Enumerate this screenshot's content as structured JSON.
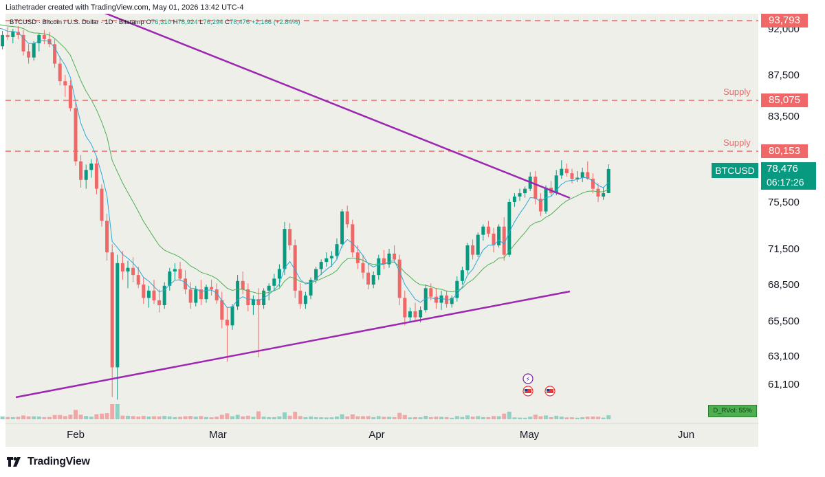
{
  "credit": "Liathetrader created with TradingView.com, May 01, 2026 13:42 UTC-4",
  "legend": {
    "symbol": "BTCUSD · Bitcoin / U.S. Dollar · 1D · Bitstamp",
    "o_label": "O",
    "o": "76,310",
    "h_label": "H",
    "h": "78,924",
    "l_label": "L",
    "l": "76,294",
    "c_label": "C",
    "c": "78,476",
    "change": "+2,166 (+2.84%)"
  },
  "tags": {
    "top": "93,793",
    "supply_high": "85,075",
    "supply_low": "80,153",
    "symbol": "BTCUSD",
    "last_price": "78,476",
    "countdown": "06:17:26"
  },
  "supply_label_1": "Supply",
  "supply_label_2": "Supply",
  "rvol": "D_RVol: 55%",
  "footer": {
    "brand": "TradingView"
  },
  "colors": {
    "up": "#089981",
    "down": "#f06767",
    "trendline": "#9c27b0",
    "fast_ma": "#2aa8d8",
    "slow_ma": "#4caf50",
    "level": "#f06767"
  },
  "chart_data": {
    "type": "candlestick",
    "x_ticks": [
      "Feb",
      "Mar",
      "Apr",
      "May",
      "Jun"
    ],
    "y_ticks": [
      92000,
      87500,
      83500,
      75500,
      71500,
      68500,
      65500,
      63100,
      61100
    ],
    "y_tick_labels": [
      "92,000",
      "87,500",
      "83,500",
      "75,500",
      "71,500",
      "68,500",
      "65,500",
      "63,100",
      "61,100"
    ],
    "levels": [
      93793,
      85075,
      80153
    ],
    "last_close": 78476,
    "candles_start": "2026-01-15",
    "candles": [
      [
        94500,
        95400,
        93200,
        93600
      ],
      [
        93600,
        94200,
        91000,
        91500
      ],
      [
        91500,
        92200,
        89800,
        90300
      ],
      [
        90300,
        91800,
        90000,
        91400
      ],
      [
        91400,
        92400,
        90900,
        91200
      ],
      [
        91200,
        92000,
        90600,
        91700
      ],
      [
        91700,
        92600,
        91000,
        91400
      ],
      [
        91400,
        91900,
        89400,
        89800
      ],
      [
        89800,
        90500,
        88600,
        89200
      ],
      [
        89200,
        90800,
        88900,
        90600
      ],
      [
        90600,
        91600,
        89800,
        91400
      ],
      [
        91400,
        91900,
        90500,
        91000
      ],
      [
        91000,
        91700,
        90200,
        90500
      ],
      [
        90500,
        91000,
        88200,
        88600
      ],
      [
        88600,
        89300,
        86500,
        86900
      ],
      [
        86900,
        87500,
        85400,
        86500
      ],
      [
        86500,
        87000,
        84000,
        84300
      ],
      [
        84300,
        84900,
        78800,
        79200
      ],
      [
        79200,
        79800,
        76800,
        77500
      ],
      [
        77500,
        78900,
        76700,
        78400
      ],
      [
        78400,
        79400,
        77700,
        79000
      ],
      [
        79000,
        79500,
        76200,
        76700
      ],
      [
        76700,
        77100,
        73400,
        73900
      ],
      [
        73900,
        74500,
        70500,
        71200
      ],
      [
        71200,
        71900,
        60200,
        62300
      ],
      [
        62300,
        71000,
        60000,
        70300
      ],
      [
        70300,
        71300,
        68900,
        69600
      ],
      [
        69600,
        70500,
        68200,
        69900
      ],
      [
        69900,
        70800,
        68700,
        69300
      ],
      [
        69300,
        70000,
        68200,
        68500
      ],
      [
        68500,
        69100,
        66900,
        67400
      ],
      [
        67400,
        68400,
        66600,
        68000
      ],
      [
        68000,
        68900,
        66900,
        67200
      ],
      [
        67200,
        68100,
        66200,
        66800
      ],
      [
        66800,
        68700,
        66500,
        68400
      ],
      [
        68400,
        69900,
        68000,
        69600
      ],
      [
        69600,
        70300,
        68900,
        69800
      ],
      [
        69800,
        70400,
        68800,
        69000
      ],
      [
        69000,
        69700,
        67700,
        68100
      ],
      [
        68100,
        68700,
        66500,
        67000
      ],
      [
        67000,
        68400,
        66700,
        68100
      ],
      [
        68100,
        68900,
        66800,
        67300
      ],
      [
        67300,
        68500,
        67000,
        68300
      ],
      [
        68300,
        68900,
        67600,
        68100
      ],
      [
        68100,
        68600,
        66900,
        67200
      ],
      [
        67200,
        67900,
        65000,
        65600
      ],
      [
        65600,
        66600,
        62700,
        65200
      ],
      [
        65200,
        66900,
        64900,
        66700
      ],
      [
        66700,
        69300,
        66400,
        68800
      ],
      [
        68800,
        69600,
        67700,
        68100
      ],
      [
        68100,
        68600,
        66300,
        66800
      ],
      [
        66800,
        67600,
        66000,
        67300
      ],
      [
        67300,
        68200,
        63000,
        66800
      ],
      [
        66800,
        68200,
        66500,
        68000
      ],
      [
        68000,
        68600,
        67200,
        68400
      ],
      [
        68400,
        69400,
        68000,
        69000
      ],
      [
        69000,
        70200,
        68300,
        69800
      ],
      [
        69800,
        73800,
        69300,
        73200
      ],
      [
        73200,
        73700,
        71400,
        71800
      ],
      [
        71800,
        72300,
        67400,
        68000
      ],
      [
        68000,
        68600,
        66500,
        66900
      ],
      [
        66900,
        67900,
        66500,
        67600
      ],
      [
        67600,
        69100,
        67300,
        68900
      ],
      [
        68900,
        70000,
        68600,
        69800
      ],
      [
        69800,
        70600,
        69300,
        70400
      ],
      [
        70400,
        71200,
        70000,
        70700
      ],
      [
        70700,
        71300,
        70000,
        70900
      ],
      [
        70900,
        72400,
        70600,
        71900
      ],
      [
        71900,
        74900,
        71600,
        74700
      ],
      [
        74700,
        75200,
        73300,
        73600
      ],
      [
        73600,
        74000,
        70800,
        71200
      ],
      [
        71200,
        71800,
        69800,
        70300
      ],
      [
        70300,
        71000,
        69000,
        69500
      ],
      [
        69500,
        70200,
        68100,
        68500
      ],
      [
        68500,
        69600,
        68200,
        69300
      ],
      [
        69300,
        71000,
        68900,
        70700
      ],
      [
        70700,
        71400,
        69800,
        70200
      ],
      [
        70200,
        71500,
        69900,
        71100
      ],
      [
        71100,
        71800,
        70400,
        70600
      ],
      [
        70600,
        71000,
        66800,
        67400
      ],
      [
        67400,
        68000,
        65200,
        65800
      ],
      [
        65800,
        66600,
        65400,
        66300
      ],
      [
        66300,
        67000,
        65600,
        65800
      ],
      [
        65800,
        66700,
        65400,
        66400
      ],
      [
        66400,
        68500,
        66200,
        68200
      ],
      [
        68200,
        68600,
        67200,
        67500
      ],
      [
        67500,
        68200,
        66500,
        67000
      ],
      [
        67000,
        68000,
        66400,
        67600
      ],
      [
        67600,
        68000,
        66600,
        66900
      ],
      [
        66900,
        67600,
        66600,
        67400
      ],
      [
        67400,
        69200,
        67100,
        68800
      ],
      [
        68800,
        70000,
        68500,
        69700
      ],
      [
        69700,
        72000,
        69400,
        71800
      ],
      [
        71800,
        72300,
        70600,
        71000
      ],
      [
        71000,
        72900,
        70800,
        72700
      ],
      [
        72700,
        73600,
        72200,
        73400
      ],
      [
        73400,
        73900,
        72500,
        72800
      ],
      [
        72800,
        73300,
        71200,
        71800
      ],
      [
        71800,
        73600,
        71600,
        73400
      ],
      [
        73400,
        74200,
        70500,
        71000
      ],
      [
        71000,
        75800,
        70800,
        75500
      ],
      [
        75500,
        76300,
        75100,
        76000
      ],
      [
        76000,
        76700,
        75600,
        76300
      ],
      [
        76300,
        76900,
        75900,
        76700
      ],
      [
        76700,
        78200,
        76500,
        77800
      ],
      [
        77800,
        78300,
        75300,
        75800
      ],
      [
        75800,
        76300,
        74300,
        74700
      ],
      [
        74700,
        77000,
        74500,
        76800
      ],
      [
        76800,
        77400,
        76000,
        76300
      ],
      [
        76300,
        78400,
        76100,
        77900
      ],
      [
        77900,
        79300,
        77600,
        78500
      ],
      [
        78500,
        79000,
        77800,
        78100
      ],
      [
        78100,
        78500,
        77200,
        77600
      ],
      [
        77600,
        78300,
        77300,
        77700
      ],
      [
        77700,
        78600,
        77300,
        78200
      ],
      [
        78200,
        79200,
        77500,
        77600
      ],
      [
        77600,
        78100,
        76300,
        76700
      ],
      [
        76700,
        77200,
        75500,
        76000
      ],
      [
        76000,
        76800,
        75700,
        76300
      ],
      [
        76310,
        78924,
        76294,
        78476
      ]
    ]
  }
}
